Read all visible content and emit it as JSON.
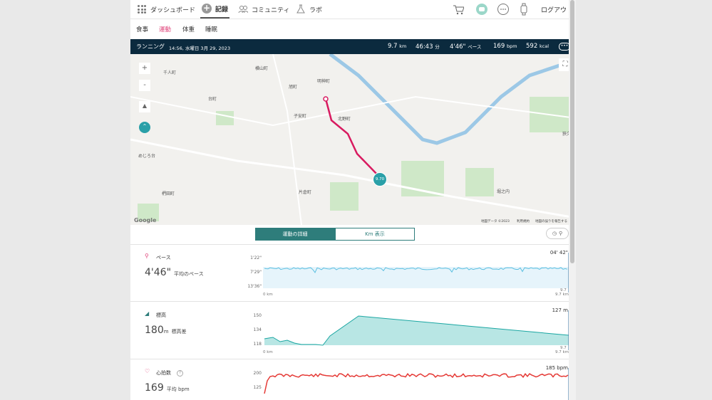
{
  "nav": {
    "items": [
      {
        "label": "ダッシュボード",
        "icon": "grid-dots-icon"
      },
      {
        "label": "記録",
        "icon": "plus-circle-icon"
      },
      {
        "label": "コミュニティ",
        "icon": "people-icon"
      },
      {
        "label": "ラボ",
        "icon": "flask-icon"
      }
    ],
    "logout": "ログアウト",
    "icons": [
      "cart-icon",
      "device-icon",
      "chat-icon",
      "watch-icon"
    ]
  },
  "subnav": [
    "食事",
    "運動",
    "体重",
    "睡眠"
  ],
  "statbar": {
    "activity": "ランニング",
    "datetime": "14:56, 水曜日 3月 29, 2023",
    "distance": "9.7",
    "distance_unit": "km",
    "duration": "46:43",
    "duration_unit": "分",
    "pace": "4'46\"",
    "pace_unit": "ペース",
    "hr": "169",
    "hr_unit": "bpm",
    "kcal": "592",
    "kcal_unit": "kcal",
    "more": "•••"
  },
  "map": {
    "labels": [
      "千人町",
      "横山町",
      "明神町",
      "旭町",
      "台町",
      "子安町",
      "北野町",
      "めじろ台",
      "片倉町",
      "椚田町",
      "堀之内",
      "狭久保"
    ],
    "marker": "9.70",
    "zoom_in": "+",
    "zoom_out": "-",
    "google": "Google",
    "footer_data": "地図データ ©2023",
    "footer_terms": "利用規約",
    "footer_report": "地図の誤りを報告する"
  },
  "tabs": {
    "detail": "運動の詳細",
    "km": "Km 表示"
  },
  "pace": {
    "name": "ペース",
    "value": "4'46\"",
    "desc": "平均のペース",
    "yticks": [
      "1'22\"",
      "7'29\"",
      "13'36\""
    ],
    "x_start": "0 km",
    "x_end_top": "9.7",
    "x_end_bottom": "9.7 km",
    "cursor": "04' 42\""
  },
  "elev": {
    "name": "標高",
    "value": "180",
    "unit": "m",
    "desc": "標高差",
    "yticks": [
      "150",
      "134",
      "118"
    ],
    "x_start": "0 km",
    "x_end_top": "9.7",
    "x_end_bottom": "9.7 km",
    "cursor": "127 m"
  },
  "hr": {
    "name": "心拍数",
    "value": "169",
    "unit": "平均 bpm",
    "help": "?",
    "yticks": [
      "200",
      "125"
    ],
    "cursor": "185 bpm"
  },
  "colors": {
    "accent": "#e0457b",
    "teal": "#2e7d7b",
    "dark": "#0b2a3e",
    "route": "#d81b60"
  }
}
